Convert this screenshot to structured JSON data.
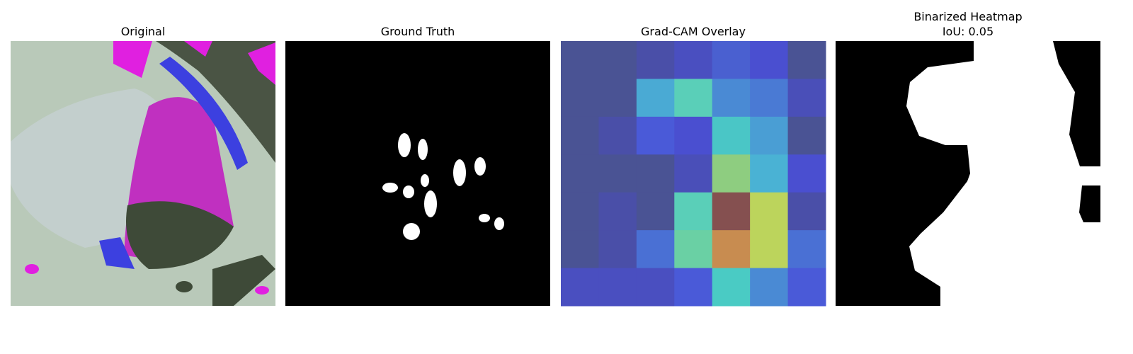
{
  "panels": [
    {
      "title": [
        "Original"
      ]
    },
    {
      "title": [
        "Ground Truth"
      ]
    },
    {
      "title": [
        "Grad-CAM Overlay"
      ]
    },
    {
      "title": [
        "Binarized Heatmap",
        "IoU: 0.05"
      ]
    }
  ]
}
